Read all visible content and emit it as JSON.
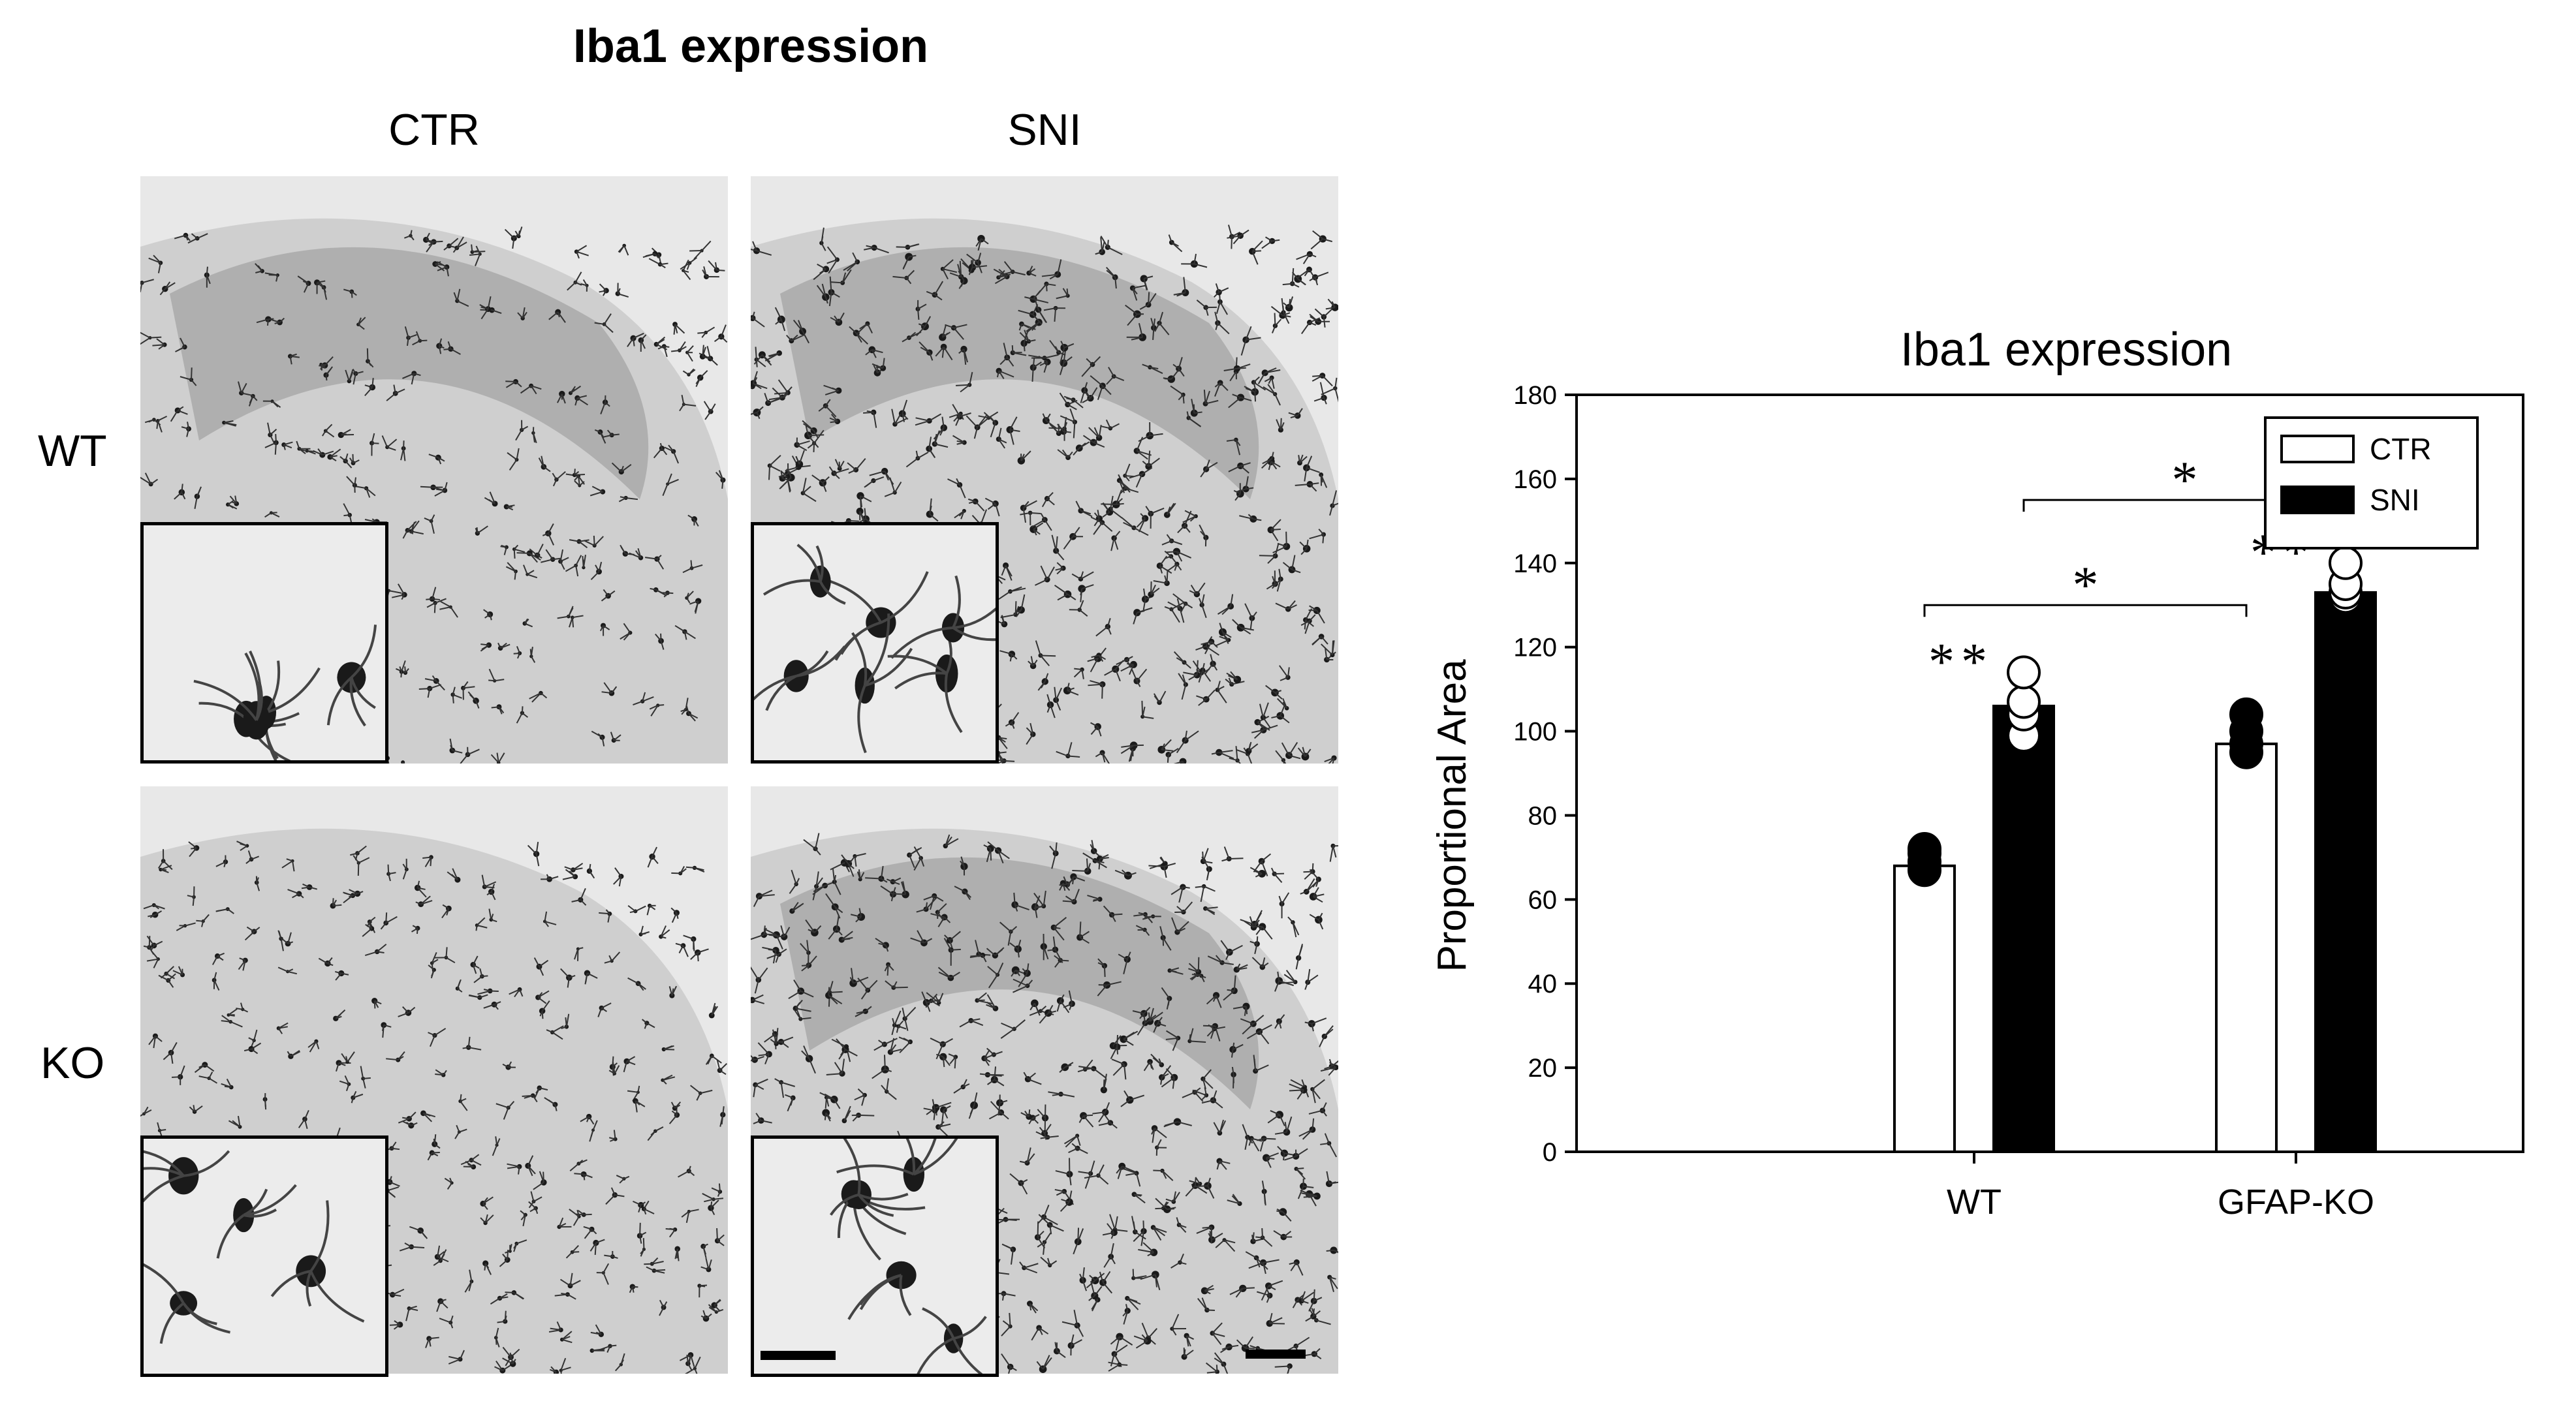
{
  "figure": {
    "title": "Iba1 expression",
    "columns": [
      "CTR",
      "SNI"
    ],
    "rows": [
      "WT",
      "KO"
    ]
  },
  "colors": {
    "tissue_light": "#d9d9d9",
    "tissue_dark": "#8a8a8a",
    "cell": "#1a1a1a",
    "background_gray": "#e8e8e8"
  },
  "chart_data": {
    "type": "bar",
    "title": "Iba1 expression",
    "xlabel": "",
    "ylabel": "Proportional Area",
    "ylim": [
      0,
      180
    ],
    "yticks": [
      0,
      20,
      40,
      60,
      80,
      100,
      120,
      140,
      160,
      180
    ],
    "categories": [
      "WT",
      "GFAP-KO"
    ],
    "series": [
      {
        "name": "CTR",
        "fill": "#ffffff",
        "values": [
          68,
          97
        ],
        "points": [
          [
            67,
            69,
            71,
            72
          ],
          [
            95,
            97,
            100,
            104
          ]
        ]
      },
      {
        "name": "SNI",
        "fill": "#000000",
        "values": [
          106,
          133
        ],
        "points": [
          [
            99,
            104,
            107,
            114
          ],
          [
            132,
            133,
            135,
            140
          ]
        ]
      }
    ],
    "significance": [
      {
        "label": "**",
        "category": "WT",
        "series": "SNI"
      },
      {
        "label": "**",
        "category": "GFAP-KO",
        "series": "SNI"
      },
      {
        "label": "*",
        "from": [
          "WT",
          "CTR"
        ],
        "to": [
          "GFAP-KO",
          "CTR"
        ]
      },
      {
        "label": "*",
        "from": [
          "WT",
          "SNI"
        ],
        "to": [
          "GFAP-KO",
          "SNI"
        ]
      }
    ],
    "legend_position": "top-right",
    "grid": false
  }
}
